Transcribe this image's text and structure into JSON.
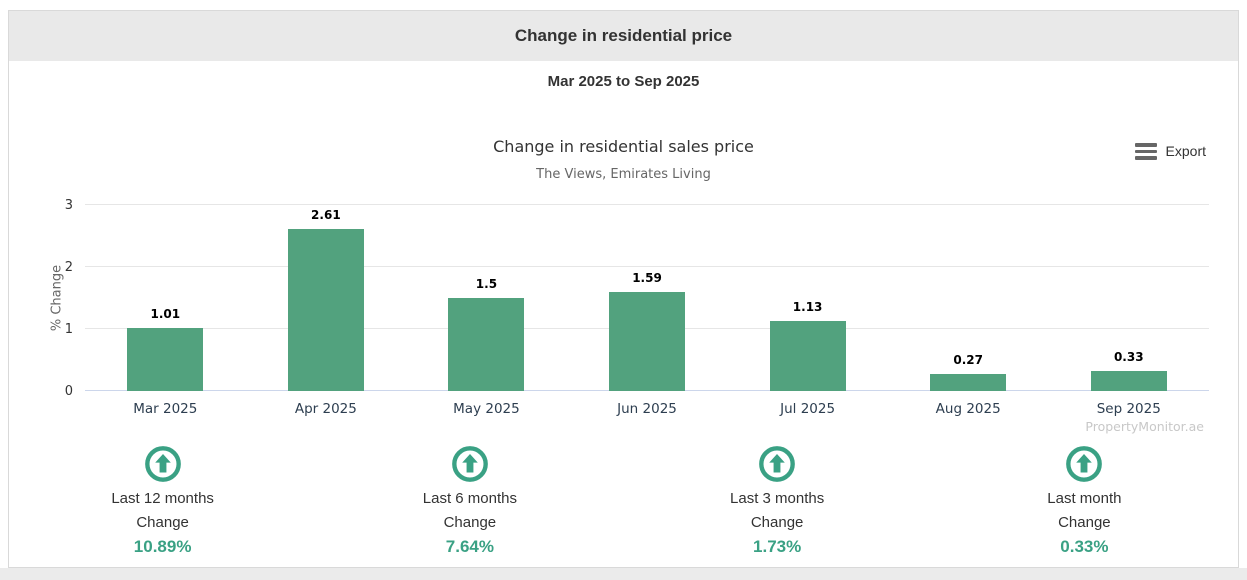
{
  "header": {
    "title": "Change in residential price"
  },
  "date_range": "Mar 2025 to Sep 2025",
  "toolbar": {
    "export_label": "Export"
  },
  "watermark": "PropertyMonitor.ae",
  "chart_data": {
    "type": "bar",
    "title": "Change in residential sales price",
    "subtitle": "The Views, Emirates Living",
    "categories": [
      "Mar 2025",
      "Apr 2025",
      "May 2025",
      "Jun 2025",
      "Jul 2025",
      "Aug 2025",
      "Sep 2025"
    ],
    "values": [
      1.01,
      2.61,
      1.5,
      1.59,
      1.13,
      0.27,
      0.33
    ],
    "value_labels": [
      "1.01",
      "2.61",
      "1.5",
      "1.59",
      "1.13",
      "0.27",
      "0.33"
    ],
    "xlabel": "",
    "ylabel": "% Change",
    "yticks": [
      0,
      1,
      2,
      3
    ],
    "ylim": [
      0,
      3
    ],
    "grid": true,
    "legend": "none"
  },
  "stats": [
    {
      "period": "Last 12 months",
      "label": "Change",
      "value": "10.89%",
      "direction": "up"
    },
    {
      "period": "Last 6 months",
      "label": "Change",
      "value": "7.64%",
      "direction": "up"
    },
    {
      "period": "Last 3 months",
      "label": "Change",
      "value": "1.73%",
      "direction": "up"
    },
    {
      "period": "Last month",
      "label": "Change",
      "value": "0.33%",
      "direction": "up"
    }
  ],
  "colors": {
    "bar": "#52a27e",
    "accent": "#3aa184",
    "axis_line": "#ccd6eb",
    "gridline": "#e6e6e6",
    "header_bg": "#e9e9e9",
    "title_text": "#333333",
    "subtitle_text": "#666666",
    "xlabel_text": "#2d3e50",
    "watermark_text": "#c8c8c8"
  }
}
